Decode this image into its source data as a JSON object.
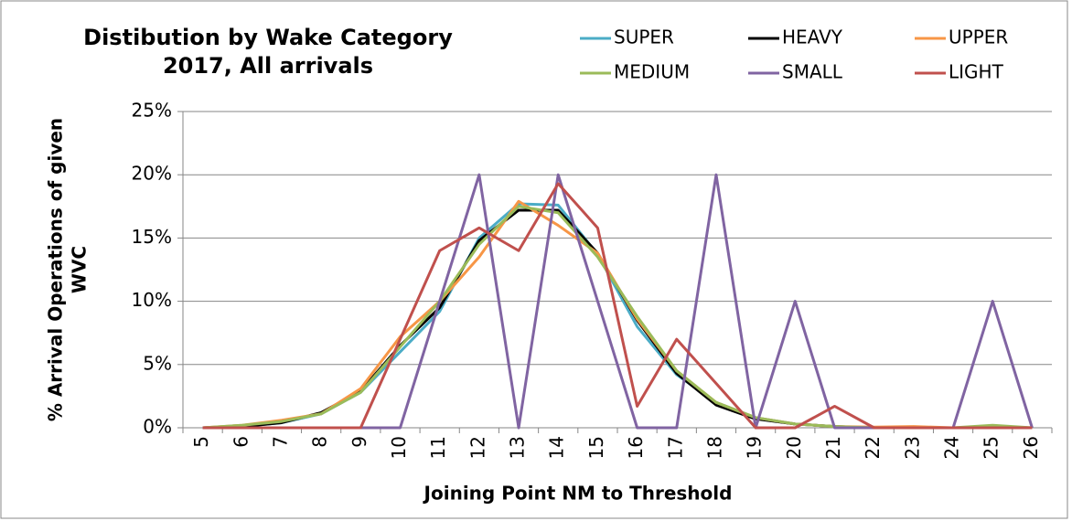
{
  "chart_data": {
    "type": "line",
    "title": "Distibution by Wake Category",
    "subtitle": "2017, All arrivals",
    "x_label": "Joining Point NM to Threshold",
    "y_label": [
      "% Arrival Operations of given",
      "WVC"
    ],
    "categories": [
      5,
      6,
      7,
      8,
      9,
      10,
      11,
      12,
      13,
      14,
      15,
      16,
      17,
      18,
      19,
      20,
      21,
      22,
      23,
      24,
      25,
      26
    ],
    "ylim": [
      0,
      25
    ],
    "yticks": [
      {
        "value": 0,
        "label": "0%"
      },
      {
        "value": 5,
        "label": "5%"
      },
      {
        "value": 10,
        "label": "10%"
      },
      {
        "value": 15,
        "label": "15%"
      },
      {
        "value": 20,
        "label": "20%"
      },
      {
        "value": 25,
        "label": "25%"
      }
    ],
    "grid": true,
    "series": [
      {
        "name": "SUPER",
        "color": "#4bacc6",
        "values": [
          0,
          0.1,
          0.4,
          1.1,
          2.8,
          6,
          9.2,
          15,
          17.7,
          17.6,
          13.7,
          8,
          4.2,
          2,
          0.8,
          0.3,
          0.1,
          0,
          0,
          0,
          0,
          0
        ]
      },
      {
        "name": "HEAVY",
        "color": "#000000",
        "values": [
          0,
          0.1,
          0.4,
          1.2,
          2.9,
          6.5,
          9.5,
          14.8,
          17.2,
          17.2,
          13.8,
          8.5,
          4.3,
          1.8,
          0.7,
          0.3,
          0.1,
          0,
          0,
          0,
          0,
          0
        ]
      },
      {
        "name": "UPPER",
        "color": "#f79646",
        "values": [
          0,
          0.2,
          0.6,
          1.1,
          3.1,
          7.2,
          10,
          13.5,
          17.9,
          16,
          13.8,
          8.6,
          4.5,
          2,
          0.8,
          0.3,
          0.1,
          0.05,
          0.1,
          0,
          0.1,
          0
        ]
      },
      {
        "name": "MEDIUM",
        "color": "#9bbb59",
        "values": [
          0,
          0.2,
          0.5,
          1.1,
          2.8,
          6.4,
          10,
          14.5,
          17.5,
          17,
          13.5,
          8.8,
          4.5,
          2,
          0.8,
          0.3,
          0.1,
          0,
          0,
          0,
          0.2,
          0
        ]
      },
      {
        "name": "SMALL",
        "color": "#8064a2",
        "values": [
          0,
          0,
          0,
          0,
          0,
          0,
          10,
          20,
          0,
          20,
          10,
          0,
          0,
          20,
          0,
          10,
          0,
          0,
          0,
          0,
          10,
          0
        ]
      },
      {
        "name": "LIGHT",
        "color": "#c0504d",
        "values": [
          0,
          0,
          0,
          0,
          0,
          7,
          14,
          15.8,
          14,
          19.3,
          15.8,
          1.7,
          7,
          3.5,
          0,
          0,
          1.7,
          0,
          0,
          0,
          0,
          0
        ]
      }
    ]
  }
}
